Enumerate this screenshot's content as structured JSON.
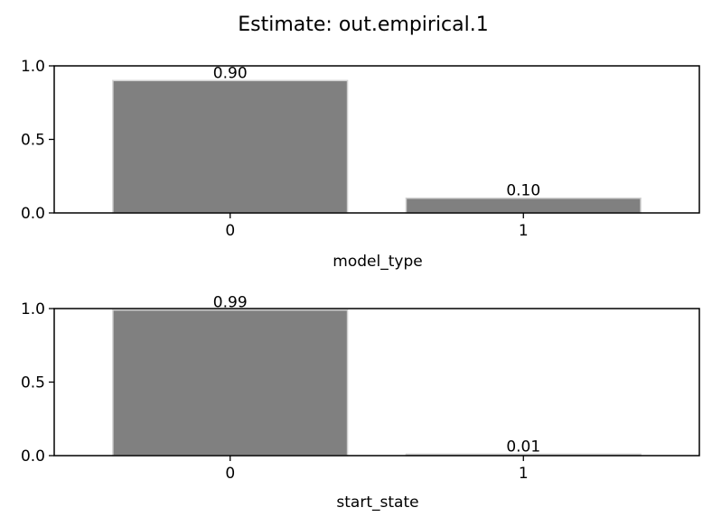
{
  "title": "Estimate: out.empirical.1",
  "chart_data": [
    {
      "type": "bar",
      "categories": [
        "0",
        "1"
      ],
      "values": [
        0.9,
        0.1
      ],
      "value_labels": [
        "0.90",
        "0.10"
      ],
      "xlabel": "model_type",
      "ylabel": "",
      "ylim": [
        0,
        1.0
      ],
      "yticks": [
        "0.0",
        "0.5",
        "1.0"
      ],
      "grid": false
    },
    {
      "type": "bar",
      "categories": [
        "0",
        "1"
      ],
      "values": [
        0.99,
        0.01
      ],
      "value_labels": [
        "0.99",
        "0.01"
      ],
      "xlabel": "start_state",
      "ylabel": "",
      "ylim": [
        0,
        1.0
      ],
      "yticks": [
        "0.0",
        "0.5",
        "1.0"
      ],
      "grid": false
    }
  ],
  "colors": {
    "bar_fill": "#808080",
    "bar_edge": "#d0d0d0",
    "axes": "#000000",
    "background": "#ffffff"
  }
}
